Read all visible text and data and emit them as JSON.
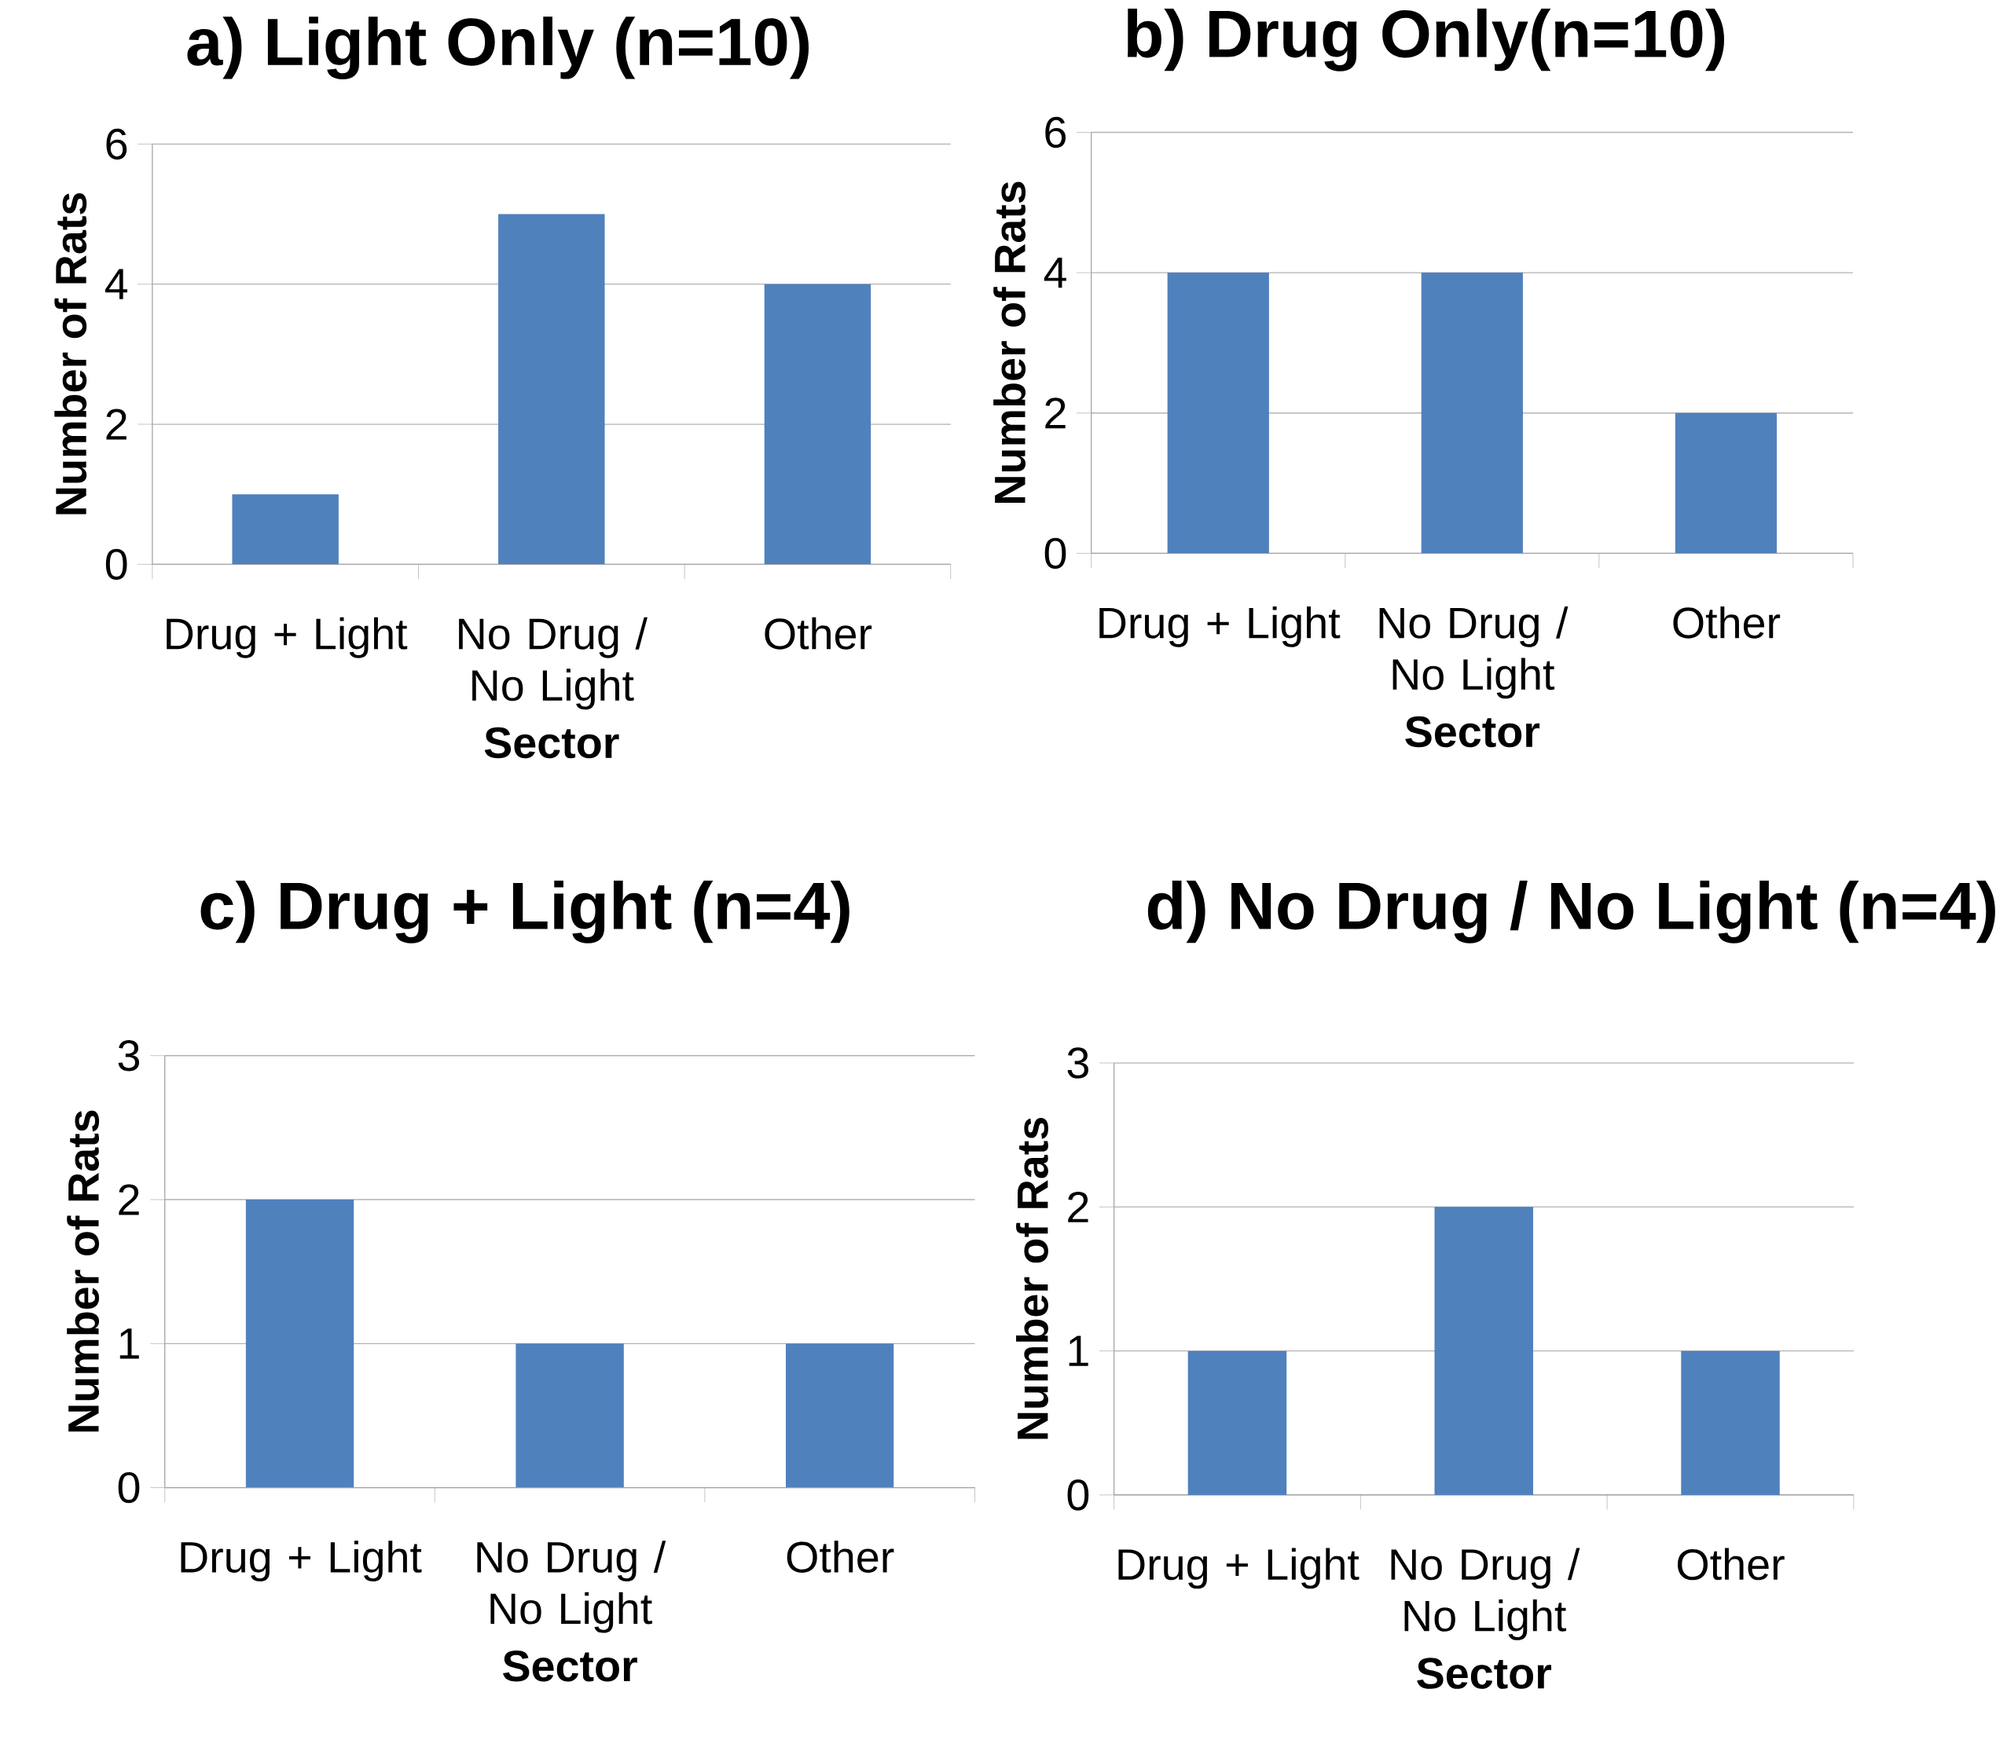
{
  "chart_data": [
    {
      "type": "bar",
      "title": "a) Light Only (n=10)",
      "xlabel": "Sector",
      "ylabel": "Number of Rats",
      "categories": [
        "Drug + Light",
        "No Drug / No Light",
        "Other"
      ],
      "values": [
        1,
        5,
        4
      ],
      "color": "#4f81bd",
      "ylim": [
        0,
        6
      ],
      "yticks": [
        0,
        2,
        4,
        6
      ],
      "grid": "y"
    },
    {
      "type": "bar",
      "title": "b) Drug Only(n=10)",
      "xlabel": "Sector",
      "ylabel": "Number of Rats",
      "categories": [
        "Drug + Light",
        "No Drug / No Light",
        "Other"
      ],
      "values": [
        4,
        4,
        2
      ],
      "color": "#4f81bd",
      "ylim": [
        0,
        6
      ],
      "yticks": [
        0,
        2,
        4,
        6
      ],
      "grid": "y"
    },
    {
      "type": "bar",
      "title": "c) Drug + Light (n=4)",
      "xlabel": "Sector",
      "ylabel": "Number of Rats",
      "categories": [
        "Drug + Light",
        "No Drug / No Light",
        "Other"
      ],
      "values": [
        2,
        1,
        1
      ],
      "color": "#4f81bd",
      "ylim": [
        0,
        3
      ],
      "yticks": [
        0,
        1,
        2,
        3
      ],
      "grid": "y"
    },
    {
      "type": "bar",
      "title": "d) No Drug / No Light (n=4)",
      "xlabel": "Sector",
      "ylabel": "Number of Rats",
      "categories": [
        "Drug + Light",
        "No Drug / No Light",
        "Other"
      ],
      "values": [
        1,
        2,
        1
      ],
      "color": "#4f81bd",
      "ylim": [
        0,
        3
      ],
      "yticks": [
        0,
        1,
        2,
        3
      ],
      "grid": "y"
    }
  ]
}
